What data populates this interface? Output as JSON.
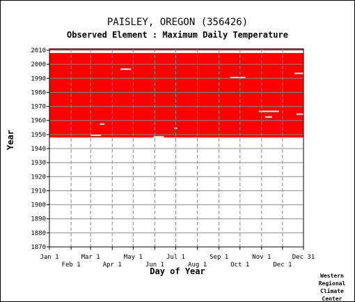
{
  "chart_data": {
    "type": "heatmap",
    "title": "PAISLEY, OREGON   (356426)",
    "subtitle": "Observed Element : Maximum Daily Temperature",
    "xlabel": "Day of Year",
    "ylabel": "Year",
    "credit": "Western Regional Climate Center",
    "ylim": [
      1870,
      2011
    ],
    "yticks": [
      2010,
      2000,
      1990,
      1980,
      1970,
      1960,
      1950,
      1940,
      1930,
      1920,
      1910,
      1900,
      1890,
      1880,
      1870
    ],
    "xlim": [
      1,
      365
    ],
    "xticks": [
      {
        "label": "Jan 1",
        "day": 1,
        "row": "top"
      },
      {
        "label": "Feb 1",
        "day": 32,
        "row": "bottom"
      },
      {
        "label": "Mar 1",
        "day": 60,
        "row": "top"
      },
      {
        "label": "Apr 1",
        "day": 91,
        "row": "bottom"
      },
      {
        "label": "May 1",
        "day": 121,
        "row": "top"
      },
      {
        "label": "Jun 1",
        "day": 152,
        "row": "bottom"
      },
      {
        "label": "Jul 1",
        "day": 182,
        "row": "top"
      },
      {
        "label": "Aug 1",
        "day": 213,
        "row": "bottom"
      },
      {
        "label": "Sep 1",
        "day": 244,
        "row": "top"
      },
      {
        "label": "Oct 1",
        "day": 274,
        "row": "bottom"
      },
      {
        "label": "Nov 1",
        "day": 305,
        "row": "top"
      },
      {
        "label": "Dec 1",
        "day": 335,
        "row": "bottom"
      },
      {
        "label": "Dec 31",
        "day": 365,
        "row": "top"
      }
    ],
    "data_period": {
      "start_year": 1948,
      "end_year": 2010
    },
    "missing_periods": [
      {
        "year_start": 2008,
        "year_end": 2010,
        "day_start": 1,
        "day_end": 365
      },
      {
        "year_start": 1996,
        "year_end": 1997,
        "day_start": 103,
        "day_end": 118
      },
      {
        "year_start": 1990,
        "year_end": 1991,
        "day_start": 260,
        "day_end": 282
      },
      {
        "year_start": 1957,
        "year_end": 1958,
        "day_start": 73,
        "day_end": 80
      },
      {
        "year_start": 1949,
        "year_end": 1950,
        "day_start": 60,
        "day_end": 75
      },
      {
        "year_start": 1948,
        "year_end": 1949,
        "day_start": 150,
        "day_end": 165
      },
      {
        "year_start": 1962,
        "year_end": 1963,
        "day_start": 310,
        "day_end": 320
      },
      {
        "year_start": 1964,
        "year_end": 1965,
        "day_start": 355,
        "day_end": 365
      },
      {
        "year_start": 1954,
        "year_end": 1955,
        "day_start": 180,
        "day_end": 184
      },
      {
        "year_start": 1966,
        "year_end": 1967,
        "day_start": 301,
        "day_end": 330
      },
      {
        "year_start": 1993,
        "year_end": 1994,
        "day_start": 352,
        "day_end": 365
      }
    ],
    "grid": true,
    "colors": {
      "data": "#ff0000",
      "missing": "#ffffff",
      "grid": "#888888"
    }
  }
}
